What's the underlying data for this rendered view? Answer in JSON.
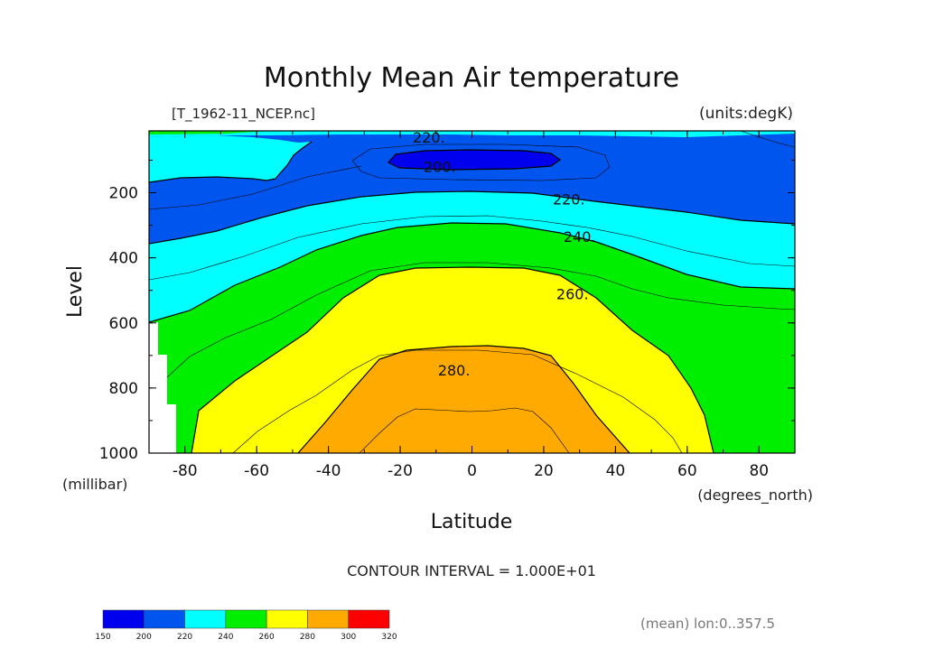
{
  "chart_data": {
    "type": "heatmap",
    "title": "Monthly Mean Air temperature",
    "subtitle_left": "[T_1962-11_NCEP.nc]",
    "units": "(units:degK)",
    "xlabel": "Latitude",
    "x_unit": "(degrees_north)",
    "ylabel": "Level",
    "y_unit": "(millibar)",
    "x_ticks": [
      "-80",
      "-60",
      "-40",
      "-20",
      "0",
      "20",
      "40",
      "60",
      "80"
    ],
    "y_ticks": [
      "200",
      "400",
      "600",
      "800",
      "1000"
    ],
    "xlim": [
      -90,
      90
    ],
    "ylim": [
      1000,
      10
    ],
    "contour_labels": [
      {
        "text": "220.",
        "lat": -12,
        "level": 30
      },
      {
        "text": "200.",
        "lat": -9,
        "level": 120
      },
      {
        "text": "220.",
        "lat": 27,
        "level": 220
      },
      {
        "text": "240.",
        "lat": 30,
        "level": 335
      },
      {
        "text": "260.",
        "lat": 28,
        "level": 510
      },
      {
        "text": "280.",
        "lat": -5,
        "level": 745
      }
    ],
    "contour_interval_text": "CONTOUR INTERVAL = 1.000E+01",
    "footer_note": "(mean) lon:0..357.5",
    "colorbar": {
      "ticks": [
        "150",
        "200",
        "220",
        "240",
        "260",
        "280",
        "300",
        "320"
      ],
      "colors": [
        "#0000ee",
        "#0055ee",
        "#00ffff",
        "#00ee00",
        "#ffff00",
        "#ffaa00",
        "#ff0000"
      ]
    }
  }
}
